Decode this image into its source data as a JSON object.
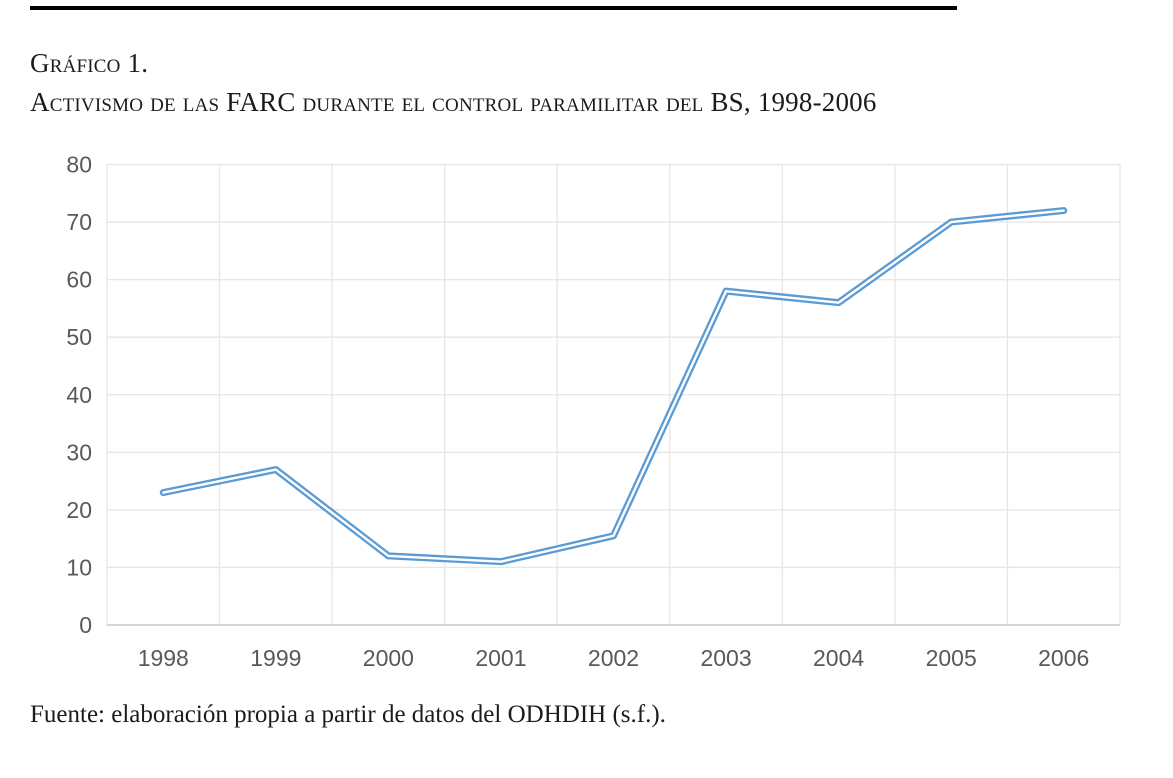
{
  "page": {
    "title_line1": "Gráfico 1.",
    "title_line2": "Activismo de las FARC durante el control paramilitar del BS, 1998-2006",
    "source_note": "Fuente: elaboración propia a partir de datos del ODHDIH (s.f.)."
  },
  "colors": {
    "line": "#5B9BD5",
    "line_core": "#FFFFFF",
    "grid": "#E6E6E6",
    "axis": "#C9C9C9",
    "tick_label": "#595959",
    "heading_text": "#1B1B1B",
    "top_rule": "#000000",
    "background": "#FFFFFF"
  },
  "chart_data": {
    "type": "line",
    "title": "Activismo de las FARC durante el control paramilitar del BS, 1998-2006",
    "categories": [
      "1998",
      "1999",
      "2000",
      "2001",
      "2002",
      "2003",
      "2004",
      "2005",
      "2006"
    ],
    "values": [
      23,
      27,
      12,
      11,
      15.5,
      58,
      56,
      70,
      72
    ],
    "xlabel": "",
    "ylabel": "",
    "ylim": [
      0,
      80
    ],
    "ytick_step": 10,
    "yticks": [
      0,
      10,
      20,
      30,
      40,
      50,
      60,
      70,
      80
    ],
    "grid": true,
    "legend": false,
    "markers": false
  }
}
